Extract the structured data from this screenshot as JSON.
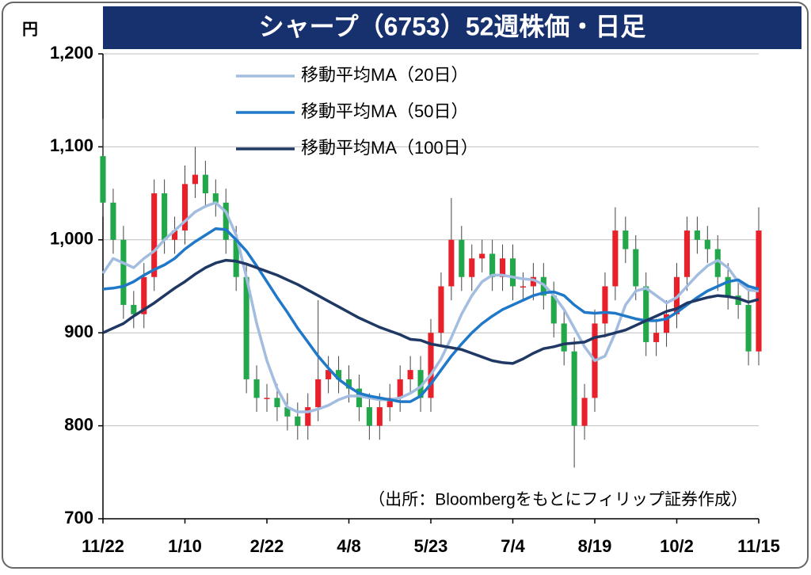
{
  "chart_data": {
    "type": "candlestick",
    "title": "シャープ（6753）52週株価・日足",
    "y_unit": "円",
    "source": "（出所：Bloombergをもとにフィリップ証券作成）",
    "categories": [
      "11/22",
      null,
      null,
      null,
      null,
      null,
      null,
      null,
      "1/10",
      null,
      null,
      null,
      null,
      null,
      null,
      null,
      "2/22",
      null,
      null,
      null,
      null,
      null,
      null,
      null,
      "4/8",
      null,
      null,
      null,
      null,
      null,
      null,
      null,
      "5/23",
      null,
      null,
      null,
      null,
      null,
      null,
      null,
      "7/4",
      null,
      null,
      null,
      null,
      null,
      null,
      null,
      "8/19",
      null,
      null,
      null,
      null,
      null,
      null,
      null,
      "10/2",
      null,
      null,
      null,
      null,
      null,
      null,
      null,
      "11/15"
    ],
    "ohlc": {
      "open": [
        1090,
        1040,
        1000,
        930,
        920,
        960,
        1050,
        1000,
        1010,
        1060,
        1070,
        1050,
        1040,
        1000,
        960,
        850,
        830,
        830,
        820,
        810,
        800,
        820,
        850,
        860,
        850,
        840,
        820,
        800,
        820,
        830,
        850,
        860,
        830,
        900,
        950,
        1000,
        960,
        980,
        985,
        960,
        980,
        950,
        950,
        960,
        940,
        910,
        880,
        800,
        830,
        910,
        950,
        1010,
        990,
        950,
        890,
        900,
        920,
        960,
        1010,
        1000,
        990,
        960,
        940,
        930,
        880
      ],
      "high": [
        1130,
        1055,
        1015,
        945,
        975,
        1065,
        1065,
        1025,
        1080,
        1100,
        1085,
        1065,
        1055,
        1015,
        975,
        865,
        845,
        845,
        835,
        825,
        835,
        935,
        875,
        875,
        865,
        855,
        835,
        835,
        845,
        865,
        875,
        875,
        915,
        965,
        1045,
        1015,
        995,
        1000,
        1000,
        995,
        995,
        965,
        975,
        975,
        955,
        925,
        895,
        845,
        925,
        965,
        1035,
        1025,
        1005,
        965,
        915,
        935,
        975,
        1025,
        1025,
        1015,
        1005,
        975,
        955,
        945,
        1035
      ],
      "low": [
        1025,
        985,
        915,
        905,
        905,
        945,
        985,
        985,
        995,
        1045,
        1035,
        1025,
        985,
        945,
        835,
        815,
        815,
        805,
        795,
        785,
        785,
        805,
        835,
        835,
        825,
        805,
        785,
        785,
        805,
        815,
        835,
        815,
        815,
        885,
        935,
        945,
        945,
        965,
        945,
        945,
        935,
        935,
        935,
        925,
        895,
        865,
        755,
        785,
        815,
        895,
        935,
        975,
        935,
        875,
        875,
        885,
        905,
        945,
        985,
        975,
        945,
        925,
        915,
        865,
        865
      ],
      "close": [
        1040,
        1000,
        930,
        920,
        960,
        1050,
        1000,
        1010,
        1060,
        1070,
        1050,
        1040,
        1000,
        960,
        850,
        830,
        830,
        820,
        810,
        800,
        820,
        850,
        860,
        850,
        840,
        820,
        800,
        820,
        830,
        850,
        860,
        830,
        900,
        950,
        1000,
        960,
        980,
        985,
        960,
        980,
        950,
        950,
        960,
        940,
        910,
        880,
        800,
        830,
        910,
        950,
        1010,
        990,
        950,
        890,
        900,
        920,
        960,
        1010,
        1000,
        990,
        960,
        940,
        930,
        880,
        1010
      ]
    },
    "up_color": "#e8202a",
    "down_color": "#22a84a",
    "series": [
      {
        "name": "移動平均MA（20日）",
        "color": "#a3bde0",
        "values": [
          964,
          980,
          975,
          970,
          980,
          988,
          1000,
          1010,
          1020,
          1030,
          1036,
          1040,
          1030,
          1005,
          960,
          910,
          870,
          840,
          820,
          815,
          815,
          818,
          822,
          828,
          832,
          832,
          830,
          828,
          828,
          830,
          835,
          842,
          855,
          872,
          895,
          920,
          940,
          955,
          962,
          962,
          960,
          958,
          957,
          952,
          940,
          925,
          905,
          885,
          870,
          875,
          900,
          930,
          945,
          948,
          940,
          932,
          938,
          950,
          962,
          972,
          978,
          970,
          955,
          946,
          945
        ]
      },
      {
        "name": "移動平均MA（50日）",
        "color": "#1f78c8",
        "values": [
          947,
          948,
          950,
          955,
          962,
          968,
          973,
          980,
          990,
          998,
          1005,
          1012,
          1011,
          1000,
          988,
          972,
          955,
          938,
          922,
          905,
          890,
          875,
          862,
          850,
          842,
          835,
          832,
          830,
          828,
          826,
          826,
          832,
          845,
          860,
          875,
          888,
          900,
          910,
          918,
          925,
          930,
          935,
          940,
          943,
          944,
          940,
          930,
          922,
          921,
          922,
          921,
          918,
          915,
          913,
          913,
          915,
          922,
          930,
          938,
          945,
          950,
          955,
          957,
          950,
          947
        ]
      },
      {
        "name": "移動平均MA（100日）",
        "color": "#1f3864",
        "values": [
          900,
          905,
          910,
          918,
          925,
          932,
          940,
          948,
          955,
          963,
          970,
          975,
          978,
          977,
          974,
          970,
          966,
          962,
          957,
          952,
          946,
          940,
          934,
          928,
          922,
          916,
          911,
          906,
          902,
          898,
          893,
          892,
          888,
          886,
          884,
          882,
          878,
          874,
          870,
          868,
          867,
          872,
          878,
          883,
          885,
          888,
          889,
          890,
          895,
          897,
          900,
          903,
          908,
          913,
          918,
          923,
          926,
          932,
          935,
          938,
          940,
          939,
          937,
          933,
          936
        ]
      }
    ],
    "ylim": [
      700,
      1200
    ],
    "yticks": [
      700,
      800,
      900,
      {
        "value": 1000,
        "label": "1,000"
      },
      {
        "value": 1100,
        "label": "1,100"
      },
      {
        "value": 1200,
        "label": "1,200"
      }
    ],
    "grid": true,
    "legend": "upper-left"
  }
}
